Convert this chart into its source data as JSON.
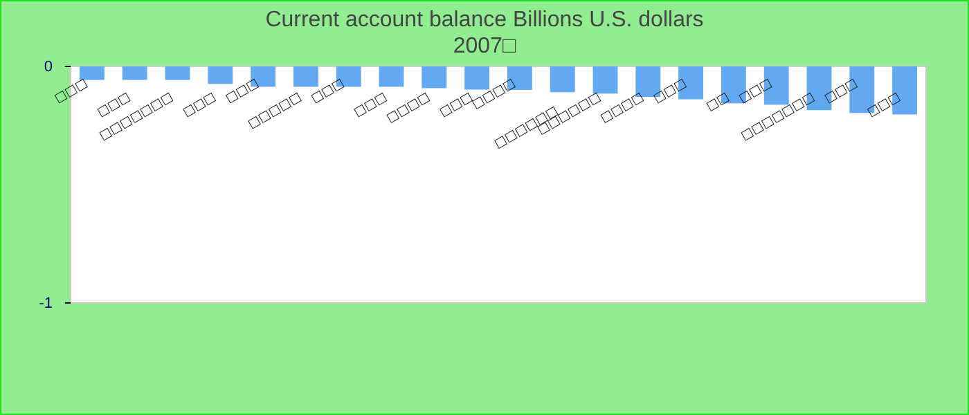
{
  "chart_data": {
    "type": "bar",
    "title": "Current account balance Billions U.S. dollars",
    "subtitle": "2007□",
    "categories": [
      "□□□",
      "□□□",
      "□□□□□□□",
      "□□□",
      "□□□",
      "□□□□□",
      "□□□",
      "□□□",
      "□□□□",
      "□□□",
      "□□□□",
      "□□□□□□",
      "□□□□□□",
      "□□□□",
      "□□□",
      "□□",
      "□□□",
      "□□□□□□□",
      "□□□",
      "□□□"
    ],
    "values": [
      -0.057,
      -0.057,
      -0.057,
      -0.074,
      -0.086,
      -0.086,
      -0.086,
      -0.086,
      -0.092,
      -0.098,
      -0.099,
      -0.109,
      -0.115,
      -0.129,
      -0.139,
      -0.156,
      -0.162,
      -0.185,
      -0.197,
      -0.203
    ],
    "color": "#62a9f2",
    "ylim": [
      -1,
      0
    ],
    "yticks": [
      -1,
      0
    ]
  }
}
